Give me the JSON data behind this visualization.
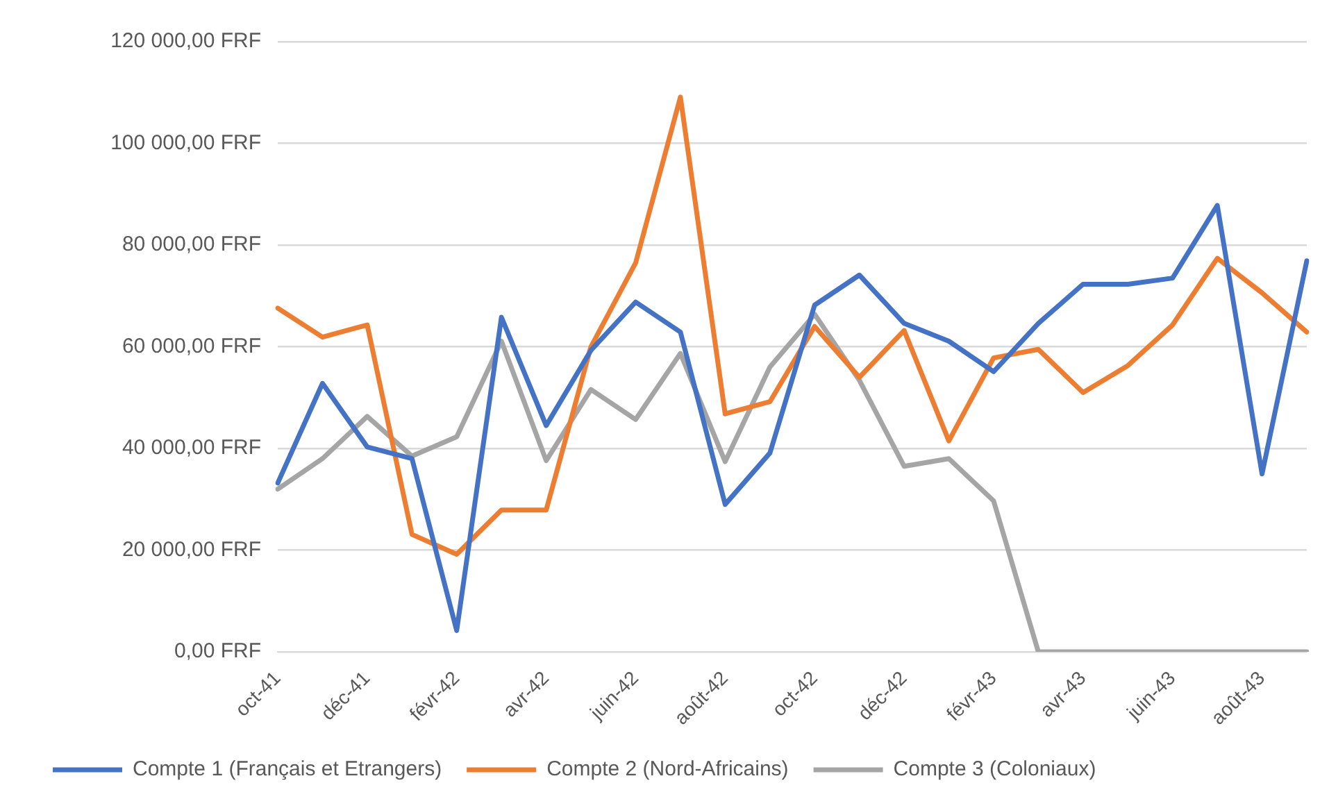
{
  "chart_data": {
    "type": "line",
    "categories": [
      "oct-41",
      null,
      "déc-41",
      null,
      "févr-42",
      null,
      "avr-42",
      null,
      "juin-42",
      null,
      "août-42",
      null,
      "oct-42",
      null,
      "déc-42",
      null,
      "févr-43",
      null,
      "avr-43",
      null,
      "juin-43",
      null,
      "août-43",
      null
    ],
    "series": [
      {
        "name": "Compte 1 (Français et Etrangers)",
        "color": "#4472c4",
        "values": [
          33200,
          52800,
          40300,
          38000,
          4200,
          65800,
          44500,
          59300,
          68800,
          62900,
          29000,
          39100,
          68200,
          74100,
          64600,
          61100,
          55100,
          64600,
          72300,
          72300,
          73500,
          87800,
          35000,
          76900
        ]
      },
      {
        "name": "Compte 2 (Nord-Africains)",
        "color": "#ed7d31",
        "values": [
          67600,
          61900,
          64300,
          23100,
          19200,
          27900,
          27900,
          60000,
          76500,
          109100,
          46800,
          49200,
          64000,
          54000,
          63200,
          41500,
          57800,
          59500,
          51000,
          56300,
          64300,
          77400,
          70600,
          62900
        ]
      },
      {
        "name": "Compte 3 (Coloniaux)",
        "color": "#a5a5a5",
        "values": [
          32000,
          38000,
          46300,
          38500,
          42300,
          61100,
          37600,
          51600,
          45700,
          58700,
          37400,
          56000,
          66400,
          53400,
          36500,
          38000,
          29700,
          0,
          0,
          0,
          0,
          0,
          0,
          0
        ]
      }
    ],
    "ylim": [
      0,
      120000
    ],
    "yticks": [
      {
        "value": 0,
        "label": "0,00 FRF"
      },
      {
        "value": 20000,
        "label": "20 000,00 FRF"
      },
      {
        "value": 40000,
        "label": "40 000,00 FRF"
      },
      {
        "value": 60000,
        "label": "60 000,00 FRF"
      },
      {
        "value": 80000,
        "label": "80 000,00 FRF"
      },
      {
        "value": 100000,
        "label": "100 000,00 FRF"
      },
      {
        "value": 120000,
        "label": "120 000,00 FRF"
      }
    ],
    "grid": "y",
    "legend": "bottom",
    "marker": "none",
    "line_style": "solid"
  }
}
